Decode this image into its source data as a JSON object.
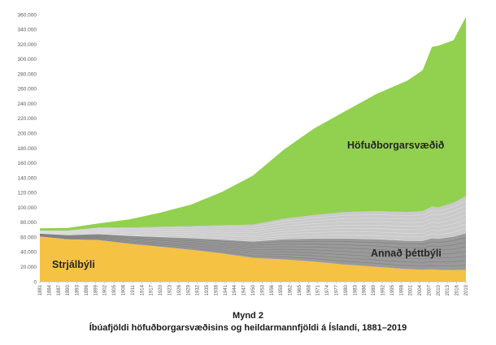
{
  "chart_data": {
    "type": "area",
    "stacked": true,
    "title": "",
    "xlabel": "",
    "ylabel": "",
    "ylim": [
      0,
      360000
    ],
    "yticks": [
      "0",
      "20.000",
      "40.000",
      "60.000",
      "80.000",
      "100.000",
      "120.000",
      "140.000",
      "160.000",
      "180.000",
      "200.000",
      "220.000",
      "240.000",
      "260.000",
      "280.000",
      "300.000",
      "320.000",
      "340.000",
      "360.000"
    ],
    "xticks": [
      "1881",
      "1884",
      "1887",
      "1890",
      "1893",
      "1896",
      "1899",
      "1902",
      "1905",
      "1908",
      "1911",
      "1914",
      "1917",
      "1920",
      "1923",
      "1926",
      "1929",
      "1932",
      "1935",
      "1938",
      "1941",
      "1944",
      "1947",
      "1950",
      "1953",
      "1956",
      "1959",
      "1962",
      "1965",
      "1968",
      "1971",
      "1974",
      "1977",
      "1980",
      "1983",
      "1986",
      "1989",
      "1992",
      "1995",
      "1998",
      "2001",
      "2004",
      "2007",
      "2010",
      "2013",
      "2016",
      "2019"
    ],
    "grid": false,
    "legend": "none",
    "series_colors": {
      "rural": "#f6c244",
      "other_urban": "#9a9a9a",
      "capital": "#92d050"
    },
    "x": [
      1881,
      1890,
      1900,
      1910,
      1920,
      1930,
      1940,
      1950,
      1960,
      1970,
      1980,
      1990,
      2000,
      2005,
      2008,
      2010,
      2015,
      2019
    ],
    "series": [
      {
        "key": "rural",
        "name": "Strjálbýli",
        "values": [
          61000,
          57000,
          56000,
          51000,
          47000,
          43000,
          38000,
          32000,
          30000,
          27000,
          23000,
          20000,
          17000,
          16000,
          16500,
          16000,
          15500,
          16000
        ]
      },
      {
        "key": "other_urban",
        "name": "Annað þéttbýli",
        "values": [
          8000,
          12000,
          17000,
          22000,
          27000,
          32000,
          38000,
          45000,
          55000,
          63000,
          71000,
          75000,
          77000,
          79000,
          85000,
          84000,
          91000,
          99000
        ]
      },
      {
        "key": "capital",
        "name": "Höfuðborgarsvæðið",
        "values": [
          3000,
          3500,
          5500,
          11000,
          19000,
          29000,
          45000,
          66000,
          93000,
          117000,
          136000,
          158000,
          177000,
          190000,
          215000,
          218000,
          219000,
          242000
        ]
      }
    ]
  },
  "caption": {
    "label": "Mynd 2",
    "title": "Íbúafjöldi höfuðborgarsvæðisins og heildarmannfjöldi á Íslandi, 1881–2019"
  }
}
